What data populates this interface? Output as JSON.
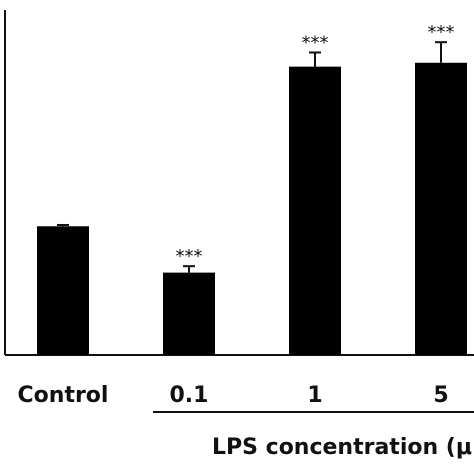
{
  "chart_data": {
    "type": "bar",
    "categories": [
      "Control",
      "0.1",
      "1",
      "5"
    ],
    "values": [
      1.0,
      0.64,
      2.24,
      2.27
    ],
    "errors": [
      0.01,
      0.05,
      0.11,
      0.16
    ],
    "significance": [
      "",
      "***",
      "***",
      "***"
    ],
    "xlabel": "LPS concentration (μ",
    "group_bracket": {
      "label": "LPS concentration (μ",
      "covers": [
        "0.1",
        "1",
        "5"
      ]
    },
    "ylim": [
      0,
      2.68
    ],
    "bar_color": "#000000",
    "grid": false,
    "legend": "none"
  }
}
